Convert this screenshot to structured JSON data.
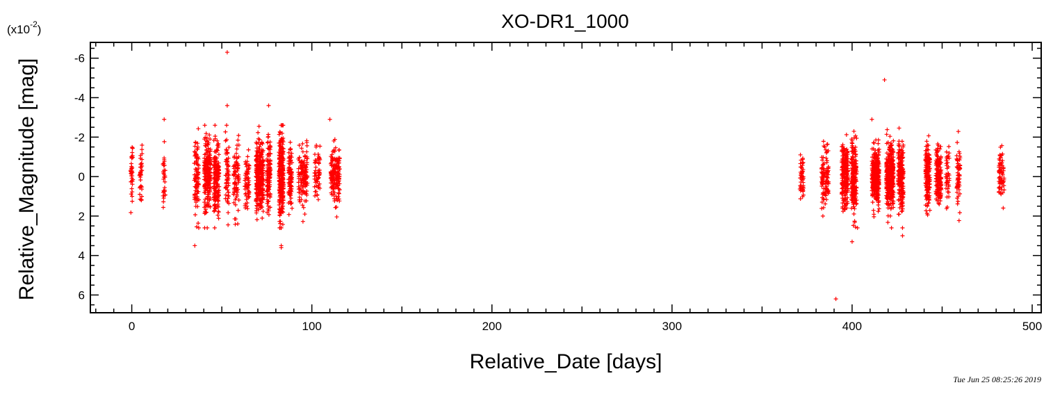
{
  "chart_data": {
    "type": "scatter",
    "title": "XO-DR1_1000",
    "xlabel": "Relative_Date [days]",
    "ylabel": "Relative_Magnitude [mag]",
    "y_scale_label": "(x10",
    "y_scale_exponent": "-2",
    "y_scale_close": ")",
    "xlim": [
      -23,
      505
    ],
    "ylim": [
      6.9,
      -6.8
    ],
    "y_inverted": true,
    "x_ticks": [
      0,
      100,
      200,
      300,
      400,
      500
    ],
    "x_tick_labels": [
      "0",
      "100",
      "200",
      "300",
      "400",
      "500"
    ],
    "y_ticks": [
      -6,
      -4,
      -2,
      0,
      2,
      4,
      6
    ],
    "y_tick_labels": [
      "-6",
      "-4",
      "-2",
      "0",
      "2",
      "4",
      "6"
    ],
    "grid": false,
    "marker": "+",
    "marker_color": "#ff0000",
    "timestamp": "Tue Jun 25 08:25:26 2019",
    "series": [
      {
        "clusters": [
          {
            "x": 0,
            "spread": 1.2,
            "n": 40,
            "sigma": 0.9
          },
          {
            "x": 5,
            "spread": 1.5,
            "n": 35,
            "sigma": 0.8
          },
          {
            "x": 18,
            "spread": 1.5,
            "n": 30,
            "sigma": 1.0
          },
          {
            "x": 36,
            "spread": 2.5,
            "n": 90,
            "sigma": 1.0
          },
          {
            "x": 42,
            "spread": 3.5,
            "n": 200,
            "sigma": 0.9
          },
          {
            "x": 47,
            "spread": 3.0,
            "n": 180,
            "sigma": 1.0
          },
          {
            "x": 53,
            "spread": 2.0,
            "n": 60,
            "sigma": 1.0
          },
          {
            "x": 58,
            "spread": 3.0,
            "n": 80,
            "sigma": 0.9
          },
          {
            "x": 64,
            "spread": 2.5,
            "n": 60,
            "sigma": 0.8
          },
          {
            "x": 71,
            "spread": 4.0,
            "n": 300,
            "sigma": 0.9
          },
          {
            "x": 76,
            "spread": 2.0,
            "n": 120,
            "sigma": 0.9
          },
          {
            "x": 83,
            "spread": 2.5,
            "n": 260,
            "sigma": 1.1
          },
          {
            "x": 88,
            "spread": 2.0,
            "n": 90,
            "sigma": 0.8
          },
          {
            "x": 95,
            "spread": 5.0,
            "n": 130,
            "sigma": 0.7
          },
          {
            "x": 103,
            "spread": 3.0,
            "n": 60,
            "sigma": 0.6
          },
          {
            "x": 113,
            "spread": 5.0,
            "n": 170,
            "sigma": 0.6
          },
          {
            "x": 372,
            "spread": 2.0,
            "n": 50,
            "sigma": 0.6
          },
          {
            "x": 385,
            "spread": 4.0,
            "n": 110,
            "sigma": 0.7
          },
          {
            "x": 396,
            "spread": 3.5,
            "n": 200,
            "sigma": 0.8
          },
          {
            "x": 401,
            "spread": 3.0,
            "n": 200,
            "sigma": 0.9
          },
          {
            "x": 413,
            "spread": 4.0,
            "n": 300,
            "sigma": 0.7
          },
          {
            "x": 421,
            "spread": 4.0,
            "n": 320,
            "sigma": 0.8
          },
          {
            "x": 427,
            "spread": 3.0,
            "n": 200,
            "sigma": 0.8
          },
          {
            "x": 442,
            "spread": 2.5,
            "n": 150,
            "sigma": 0.8
          },
          {
            "x": 448,
            "spread": 3.0,
            "n": 160,
            "sigma": 0.7
          },
          {
            "x": 453,
            "spread": 2.0,
            "n": 40,
            "sigma": 0.7
          },
          {
            "x": 459,
            "spread": 2.0,
            "n": 60,
            "sigma": 0.8
          },
          {
            "x": 483,
            "spread": 3.0,
            "n": 70,
            "sigma": 0.7
          }
        ],
        "outliers": [
          {
            "x": 53,
            "y": -6.3
          },
          {
            "x": 53,
            "y": -3.6
          },
          {
            "x": 76,
            "y": -3.6
          },
          {
            "x": 35,
            "y": 3.5
          },
          {
            "x": 83,
            "y": 3.5
          },
          {
            "x": 83,
            "y": 3.6
          },
          {
            "x": 18,
            "y": -2.9
          },
          {
            "x": 110,
            "y": -2.9
          },
          {
            "x": 418,
            "y": -4.9
          },
          {
            "x": 391,
            "y": 6.2
          },
          {
            "x": 400,
            "y": 3.3
          },
          {
            "x": 428,
            "y": 3.0
          },
          {
            "x": 403,
            "y": 2.6
          },
          {
            "x": 411,
            "y": -2.9
          }
        ]
      }
    ]
  }
}
